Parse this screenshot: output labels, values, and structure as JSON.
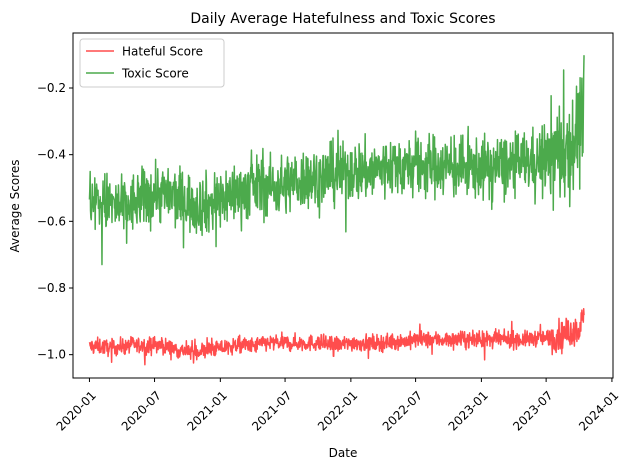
{
  "chart_data": {
    "type": "line",
    "title": "Daily Average Hatefulness and Toxic Scores",
    "xlabel": "Date",
    "ylabel": "Average Scores",
    "x_range": [
      "2019-11-16",
      "2024-01-04"
    ],
    "ylim": [
      -1.07,
      -0.035
    ],
    "x_ticks": [
      "2020-01",
      "2020-07",
      "2021-01",
      "2021-07",
      "2022-01",
      "2022-07",
      "2023-01",
      "2023-07",
      "2024-01"
    ],
    "y_ticks": [
      -1.0,
      -0.8,
      -0.6,
      -0.4,
      -0.2
    ],
    "y_tick_labels": [
      "−1.0",
      "−0.8",
      "−0.6",
      "−0.4",
      "−0.2"
    ],
    "grid": false,
    "legend_position": "top-left",
    "series": [
      {
        "name": "Hateful Score",
        "color": "#ff4d4d",
        "x": [
          "2020-01-01",
          "2020-02-01",
          "2020-03-01",
          "2020-04-01",
          "2020-05-01",
          "2020-06-01",
          "2020-07-01",
          "2020-08-01",
          "2020-09-01",
          "2020-10-01",
          "2020-11-01",
          "2020-12-01",
          "2021-01-01",
          "2021-02-01",
          "2021-03-01",
          "2021-04-01",
          "2021-05-01",
          "2021-06-01",
          "2021-07-01",
          "2021-08-01",
          "2021-09-01",
          "2021-10-01",
          "2021-11-01",
          "2021-12-01",
          "2022-01-01",
          "2022-02-01",
          "2022-03-01",
          "2022-04-01",
          "2022-05-01",
          "2022-06-01",
          "2022-07-01",
          "2022-08-01",
          "2022-09-01",
          "2022-10-01",
          "2022-11-01",
          "2022-12-01",
          "2023-01-01",
          "2023-02-01",
          "2023-03-01",
          "2023-04-01",
          "2023-05-01",
          "2023-06-01",
          "2023-07-01",
          "2023-08-01",
          "2023-09-01",
          "2023-10-01",
          "2023-10-15"
        ],
        "values": [
          -0.975,
          -0.975,
          -0.98,
          -0.975,
          -0.97,
          -0.975,
          -0.97,
          -0.975,
          -0.985,
          -0.99,
          -0.99,
          -0.985,
          -0.98,
          -0.975,
          -0.97,
          -0.975,
          -0.965,
          -0.965,
          -0.965,
          -0.965,
          -0.965,
          -0.965,
          -0.97,
          -0.97,
          -0.965,
          -0.965,
          -0.965,
          -0.965,
          -0.96,
          -0.96,
          -0.955,
          -0.955,
          -0.955,
          -0.955,
          -0.955,
          -0.955,
          -0.955,
          -0.955,
          -0.955,
          -0.955,
          -0.955,
          -0.95,
          -0.95,
          -0.945,
          -0.935,
          -0.92,
          -0.89
        ]
      },
      {
        "name": "Toxic Score",
        "color": "#4caa4c",
        "x": [
          "2020-01-01",
          "2020-02-01",
          "2020-03-01",
          "2020-04-01",
          "2020-05-01",
          "2020-06-01",
          "2020-07-01",
          "2020-08-01",
          "2020-09-01",
          "2020-10-01",
          "2020-11-01",
          "2020-12-01",
          "2021-01-01",
          "2021-02-01",
          "2021-03-01",
          "2021-04-01",
          "2021-05-01",
          "2021-06-01",
          "2021-07-01",
          "2021-08-01",
          "2021-09-01",
          "2021-10-01",
          "2021-11-01",
          "2021-12-01",
          "2022-01-01",
          "2022-02-01",
          "2022-03-01",
          "2022-04-01",
          "2022-05-01",
          "2022-06-01",
          "2022-07-01",
          "2022-08-01",
          "2022-09-01",
          "2022-10-01",
          "2022-11-01",
          "2022-12-01",
          "2023-01-01",
          "2023-02-01",
          "2023-03-01",
          "2023-04-01",
          "2023-05-01",
          "2023-06-01",
          "2023-07-01",
          "2023-08-01",
          "2023-09-01",
          "2023-10-01",
          "2023-10-15"
        ],
        "values": [
          -0.53,
          -0.54,
          -0.55,
          -0.56,
          -0.55,
          -0.53,
          -0.51,
          -0.52,
          -0.53,
          -0.54,
          -0.55,
          -0.55,
          -0.53,
          -0.52,
          -0.51,
          -0.5,
          -0.49,
          -0.5,
          -0.49,
          -0.48,
          -0.47,
          -0.47,
          -0.46,
          -0.46,
          -0.45,
          -0.45,
          -0.45,
          -0.44,
          -0.43,
          -0.44,
          -0.43,
          -0.43,
          -0.43,
          -0.44,
          -0.44,
          -0.44,
          -0.44,
          -0.44,
          -0.43,
          -0.43,
          -0.42,
          -0.42,
          -0.41,
          -0.4,
          -0.38,
          -0.33,
          -0.25
        ]
      }
    ]
  }
}
